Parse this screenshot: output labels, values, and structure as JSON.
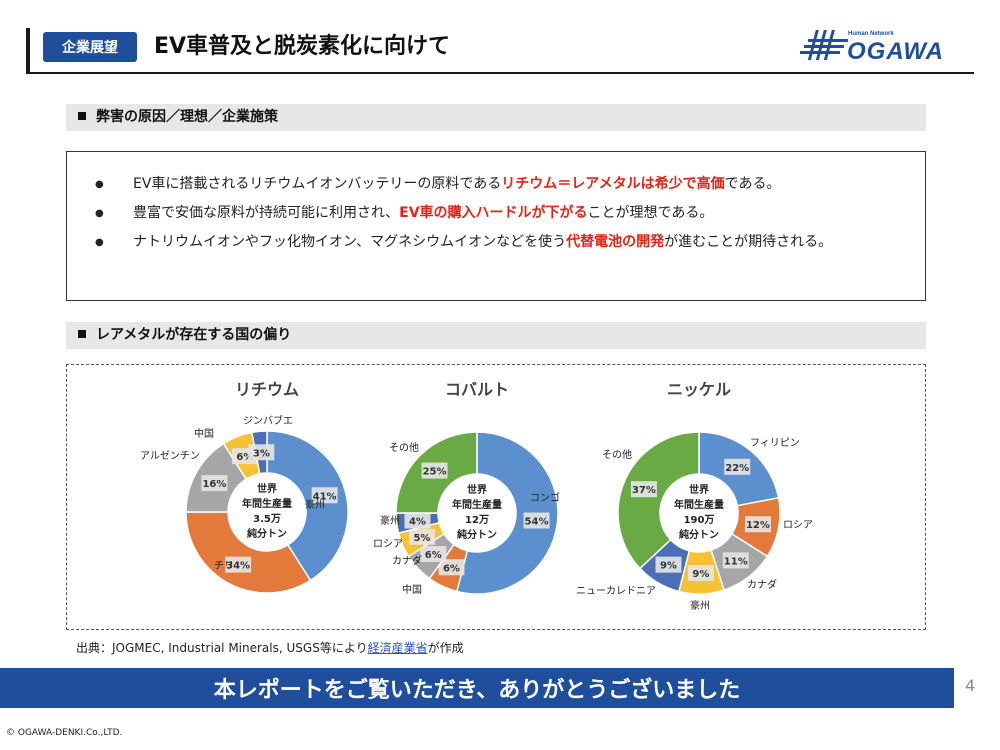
{
  "header": {
    "badge": "企業展望",
    "title": "EV車普及と脱炭素化に向けて"
  },
  "logo": {
    "tagline": "Human Network",
    "name": "OGAWA"
  },
  "section1": {
    "title": "弊害の原因／理想／企業施策",
    "bullets": [
      {
        "symbol": "●",
        "pre": "EV車に搭載されるリチウムイオンバッテリーの原料である",
        "highlight": "リチウム＝レアメタルは希少で高価",
        "post": "である。"
      },
      {
        "symbol": "●",
        "pre": "豊富で安価な原料が持続可能に利用され、",
        "highlight": "EV車の購入ハードルが下がる",
        "post": "ことが理想である。"
      },
      {
        "symbol": "●",
        "pre": "ナトリウムイオンやフッ化物イオン、マグネシウムイオンなどを使う",
        "highlight": "代替電池の開発",
        "post": "が進むことが期待される。"
      }
    ]
  },
  "section2": {
    "title": "レアメタルが存在する国の偏り"
  },
  "chart_data": [
    {
      "type": "pie",
      "title": "リチウム",
      "center_label": [
        "世界",
        "年間生産量",
        "3.5万",
        "純分トン"
      ],
      "categories": [
        "豪州",
        "チリ",
        "アルゼンチン",
        "中国",
        "ジンバブエ"
      ],
      "values": [
        41,
        34,
        16,
        6,
        3
      ],
      "labels": [
        "41%",
        "34%",
        "16%",
        "6%",
        "3%"
      ],
      "colors": [
        "#5b8fce",
        "#e3793a",
        "#a6a6a6",
        "#f4c232",
        "#4a6fb5"
      ]
    },
    {
      "type": "pie",
      "title": "コバルト",
      "center_label": [
        "世界",
        "年間生産量",
        "12万",
        "純分トン"
      ],
      "categories": [
        "コンゴ",
        "中国",
        "カナダ",
        "ロシア",
        "豪州",
        "その他"
      ],
      "values": [
        54,
        6,
        6,
        5,
        4,
        25
      ],
      "labels": [
        "54%",
        "6%",
        "6%",
        "5%",
        "4%",
        "25%"
      ],
      "colors": [
        "#5b8fce",
        "#e3793a",
        "#a6a6a6",
        "#f4c232",
        "#4a6fb5",
        "#6aaa45"
      ]
    },
    {
      "type": "pie",
      "title": "ニッケル",
      "center_label": [
        "世界",
        "年間生産量",
        "190万",
        "純分トン"
      ],
      "categories": [
        "フィリピン",
        "ロシア",
        "カナダ",
        "豪州",
        "ニューカレドニア",
        "その他"
      ],
      "values": [
        22,
        12,
        11,
        9,
        9,
        37
      ],
      "labels": [
        "22%",
        "12%",
        "11%",
        "9%",
        "9%",
        "37%"
      ],
      "colors": [
        "#5b8fce",
        "#e3793a",
        "#a6a6a6",
        "#f4c232",
        "#4a6fb5",
        "#6aaa45"
      ]
    }
  ],
  "source": {
    "pre": "出典：JOGMEC, Industrial Minerals, USGS等により",
    "link": "経済産業省",
    "post": "が作成"
  },
  "footer": {
    "thanks": "本レポートをご覧いただき、ありがとうございました",
    "page_number": "4",
    "copyright": "© OGAWA-DENKI.Co.,LTD."
  }
}
